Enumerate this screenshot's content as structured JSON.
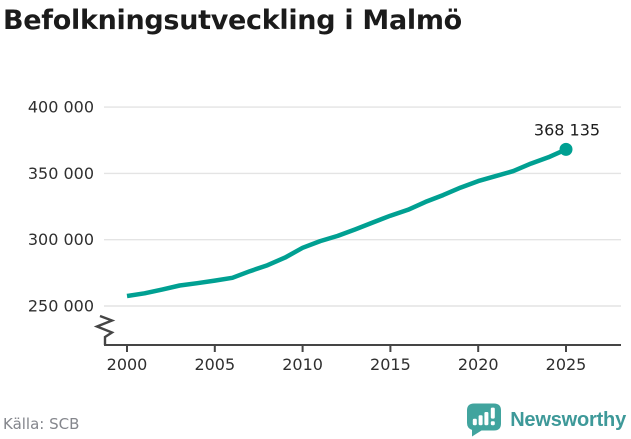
{
  "title": "Befolkningsutveckling i Malmö",
  "source": "Källa: SCB",
  "brand": {
    "name": "Newsworthy",
    "icon": "newsworthy-bubble-bar-chart-icon",
    "icon_color": "#41a49e",
    "text_color": "#3e9999"
  },
  "colors": {
    "line": "#00a092",
    "grid": "#e4e4e4",
    "axis": "#454545",
    "title_text": "#1b1b1b",
    "axis_text": "#2f2f2f",
    "annotation_text": "#1d1d1d",
    "source_text": "#84868c",
    "background": "#ffffff"
  },
  "chart_data": {
    "type": "line",
    "title": "Befolkningsutveckling i Malmö",
    "xlabel": "",
    "ylabel": "",
    "x": [
      2000,
      2001,
      2002,
      2003,
      2004,
      2005,
      2006,
      2007,
      2008,
      2009,
      2010,
      2011,
      2012,
      2013,
      2014,
      2015,
      2016,
      2017,
      2018,
      2019,
      2020,
      2021,
      2022,
      2023,
      2024,
      2025
    ],
    "values": [
      257574,
      259579,
      262397,
      265481,
      267171,
      269142,
      271271,
      276244,
      280801,
      286535,
      293909,
      298963,
      302835,
      307758,
      312994,
      318107,
      322574,
      328494,
      333633,
      339313,
      344166,
      347949,
      351749,
      357377,
      362133,
      368135
    ],
    "last_value_label": "368 135",
    "yticks": [
      {
        "value": 250000,
        "label": "250 000"
      },
      {
        "value": 300000,
        "label": "300 000"
      },
      {
        "value": 350000,
        "label": "350 000"
      },
      {
        "value": 400000,
        "label": "400 000"
      }
    ],
    "xticks": [
      {
        "value": 2000,
        "label": "2000"
      },
      {
        "value": 2005,
        "label": "2005"
      },
      {
        "value": 2010,
        "label": "2010"
      },
      {
        "value": 2015,
        "label": "2015"
      },
      {
        "value": 2020,
        "label": "2020"
      },
      {
        "value": 2025,
        "label": "2025"
      }
    ],
    "ylim": [
      250000,
      400000
    ],
    "xlim": [
      2000,
      2025
    ],
    "grid": "horizontal",
    "legend": "none",
    "axis_break": true,
    "end_point_dot": true
  }
}
